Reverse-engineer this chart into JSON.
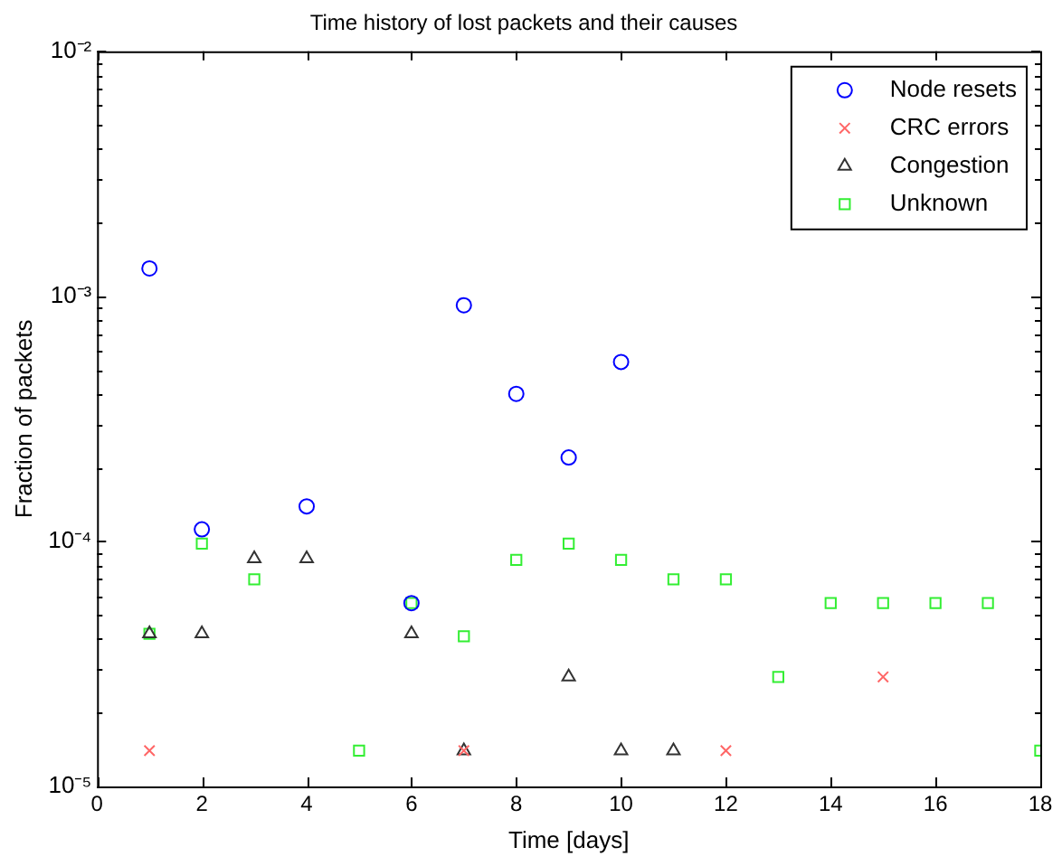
{
  "chart_data": {
    "type": "scatter",
    "title": "Time history of lost packets and their causes",
    "xlabel": "Time [days]",
    "ylabel": "Fraction of packets",
    "log": "y",
    "grid": false,
    "legend": "top right",
    "xlim": [
      0,
      18
    ],
    "xticks": [
      0,
      2,
      4,
      6,
      8,
      10,
      12,
      14,
      16,
      18
    ],
    "ylim": [
      1e-05,
      0.01
    ],
    "yticks": [
      {
        "value": 1e-05,
        "label": "10⁻⁵"
      },
      {
        "value": 2e-05,
        "label": null
      },
      {
        "value": 3e-05,
        "label": null
      },
      {
        "value": 4e-05,
        "label": null
      },
      {
        "value": 5e-05,
        "label": null
      },
      {
        "value": 6e-05,
        "label": null
      },
      {
        "value": 7e-05,
        "label": null
      },
      {
        "value": 8e-05,
        "label": null
      },
      {
        "value": 9e-05,
        "label": null
      },
      {
        "value": 0.0001,
        "label": "10⁻⁴"
      },
      {
        "value": 0.0002,
        "label": null
      },
      {
        "value": 0.0003,
        "label": null
      },
      {
        "value": 0.0004,
        "label": null
      },
      {
        "value": 0.0005,
        "label": null
      },
      {
        "value": 0.0006,
        "label": null
      },
      {
        "value": 0.0007,
        "label": null
      },
      {
        "value": 0.0008,
        "label": null
      },
      {
        "value": 0.0009,
        "label": null
      },
      {
        "value": 0.001,
        "label": "10⁻³"
      },
      {
        "value": 0.002,
        "label": null
      },
      {
        "value": 0.003,
        "label": null
      },
      {
        "value": 0.004,
        "label": null
      },
      {
        "value": 0.005,
        "label": null
      },
      {
        "value": 0.006,
        "label": null
      },
      {
        "value": 0.007,
        "label": null
      },
      {
        "value": 0.008,
        "label": null
      },
      {
        "value": 0.009,
        "label": null
      },
      {
        "value": 0.01,
        "label": "10⁻²"
      }
    ],
    "series": [
      {
        "name": "Node resets",
        "color": "#0000ff",
        "marker": "circle",
        "x": [
          1,
          2,
          4,
          6,
          7,
          8,
          9,
          10
        ],
        "values": [
          0.0013,
          0.000112,
          0.000139,
          5.6e-05,
          0.00092,
          0.0004,
          0.00022,
          0.00054
        ]
      },
      {
        "name": "CRC errors",
        "color": "#ff6666",
        "marker": "cross",
        "x": [
          1,
          7,
          12,
          15
        ],
        "values": [
          1.4e-05,
          1.4e-05,
          1.4e-05,
          2.8e-05
        ]
      },
      {
        "name": "Congestion",
        "color": "#333333",
        "marker": "triangle",
        "x": [
          1,
          2,
          3,
          4,
          6,
          7,
          9,
          10,
          11
        ],
        "values": [
          4.2e-05,
          4.2e-05,
          8.5e-05,
          8.5e-05,
          4.2e-05,
          1.4e-05,
          2.8e-05,
          1.4e-05,
          1.4e-05
        ]
      },
      {
        "name": "Unknown",
        "color": "#33ee33",
        "marker": "square",
        "x": [
          1,
          2,
          3,
          5,
          6,
          7,
          8,
          9,
          10,
          11,
          12,
          13,
          14,
          15,
          16,
          17,
          18
        ],
        "values": [
          4.2e-05,
          9.8e-05,
          7e-05,
          1.4e-05,
          5.6e-05,
          4.1e-05,
          8.4e-05,
          9.8e-05,
          8.4e-05,
          7e-05,
          7e-05,
          2.8e-05,
          5.6e-05,
          5.6e-05,
          5.6e-05,
          5.6e-05,
          1.4e-05
        ]
      }
    ]
  }
}
